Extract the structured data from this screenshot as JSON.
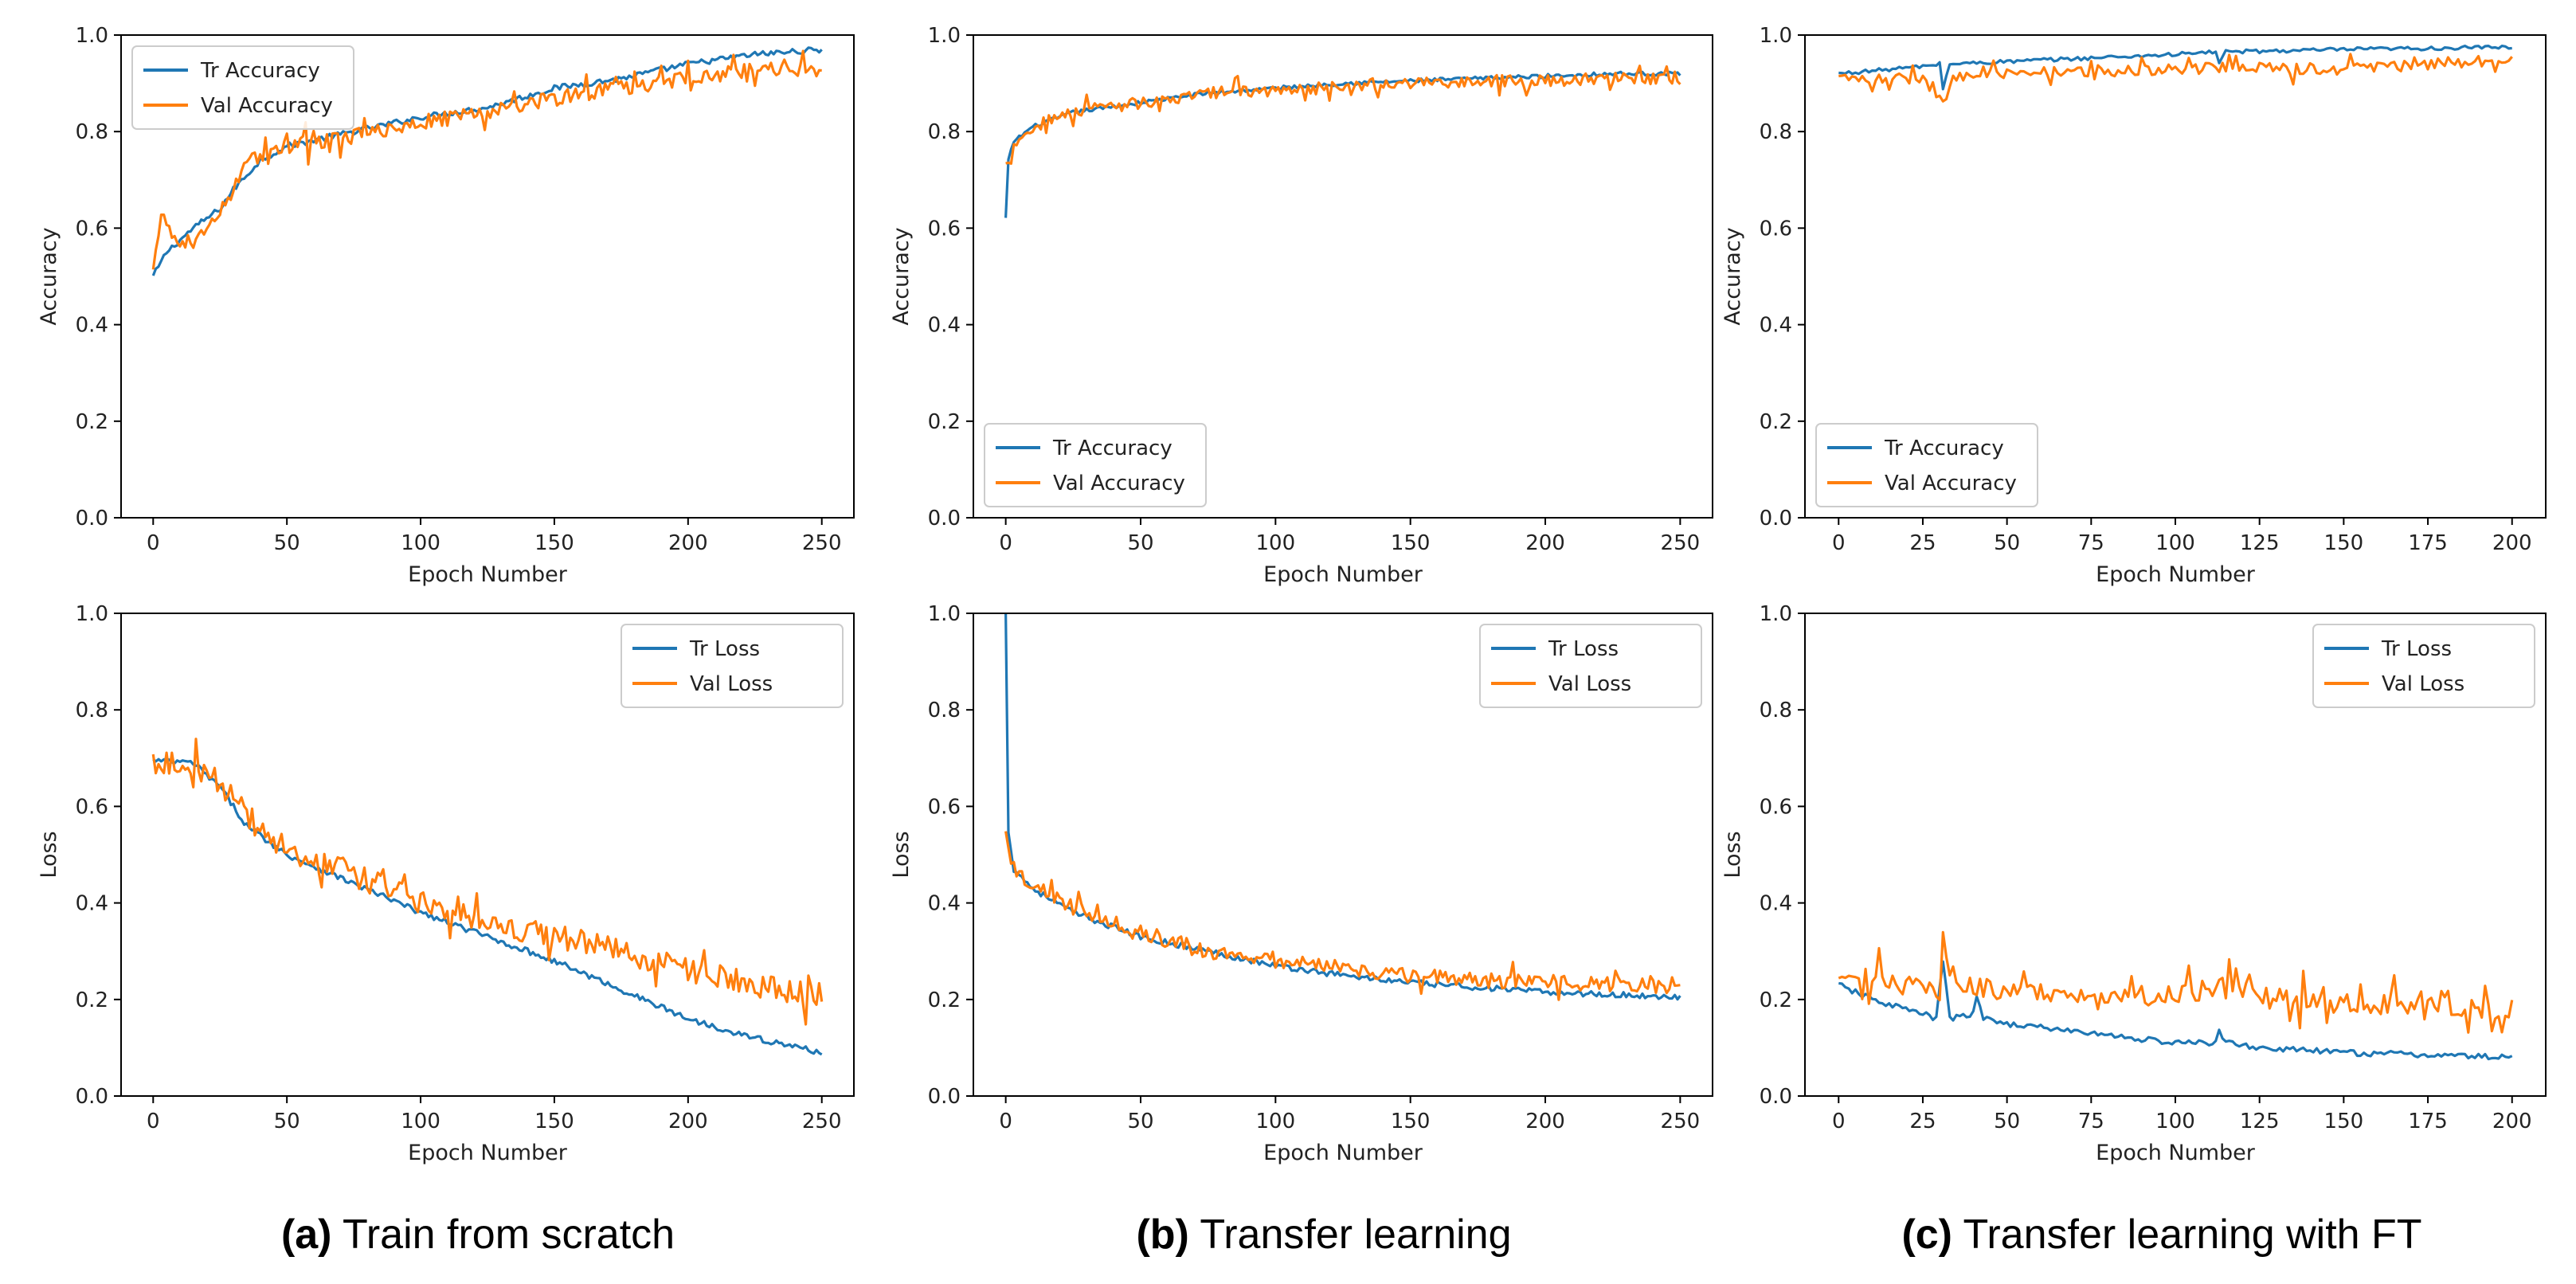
{
  "captions": [
    {
      "letter": "(a)",
      "text": "Train from scratch"
    },
    {
      "letter": "(b)",
      "text": "Transfer learning"
    },
    {
      "letter": "(c)",
      "text": "Transfer learning with FT"
    }
  ],
  "colors": {
    "train": "#1f77b4",
    "val": "#ff7f0e"
  },
  "chart_data": [
    {
      "type": "line",
      "panel": "a-accuracy",
      "xlabel": "Epoch Number",
      "ylabel": "Accuracy",
      "xlim": [
        -12,
        262
      ],
      "ylim": [
        0.0,
        1.0
      ],
      "xticks": [
        0,
        50,
        100,
        150,
        200,
        250
      ],
      "yticks": [
        0.0,
        0.2,
        0.4,
        0.6,
        0.8,
        1.0
      ],
      "legend": "top-left",
      "epochs": 250,
      "series": [
        {
          "name": "Tr Accuracy",
          "keyframes": [
            [
              0,
              0.5
            ],
            [
              5,
              0.55
            ],
            [
              15,
              0.6
            ],
            [
              25,
              0.64
            ],
            [
              30,
              0.68
            ],
            [
              40,
              0.74
            ],
            [
              50,
              0.77
            ],
            [
              75,
              0.8
            ],
            [
              100,
              0.83
            ],
            [
              125,
              0.85
            ],
            [
              150,
              0.89
            ],
            [
              175,
              0.91
            ],
            [
              200,
              0.94
            ],
            [
              225,
              0.96
            ],
            [
              250,
              0.97
            ]
          ],
          "noise": 0.006
        },
        {
          "name": "Val Accuracy",
          "keyframes": [
            [
              0,
              0.51
            ],
            [
              3,
              0.62
            ],
            [
              8,
              0.58
            ],
            [
              15,
              0.57
            ],
            [
              25,
              0.63
            ],
            [
              35,
              0.74
            ],
            [
              50,
              0.77
            ],
            [
              75,
              0.79
            ],
            [
              100,
              0.82
            ],
            [
              125,
              0.84
            ],
            [
              150,
              0.87
            ],
            [
              175,
              0.89
            ],
            [
              200,
              0.91
            ],
            [
              225,
              0.93
            ],
            [
              250,
              0.93
            ]
          ],
          "noise": 0.016
        }
      ]
    },
    {
      "type": "line",
      "panel": "b-accuracy",
      "xlabel": "Epoch Number",
      "ylabel": "Accuracy",
      "xlim": [
        -12,
        262
      ],
      "ylim": [
        0.0,
        1.0
      ],
      "xticks": [
        0,
        50,
        100,
        150,
        200,
        250
      ],
      "yticks": [
        0.0,
        0.2,
        0.4,
        0.6,
        0.8,
        1.0
      ],
      "legend": "bottom-left",
      "epochs": 250,
      "series": [
        {
          "name": "Tr Accuracy",
          "keyframes": [
            [
              0,
              0.62
            ],
            [
              1,
              0.74
            ],
            [
              3,
              0.78
            ],
            [
              10,
              0.81
            ],
            [
              25,
              0.84
            ],
            [
              50,
              0.86
            ],
            [
              75,
              0.88
            ],
            [
              100,
              0.89
            ],
            [
              125,
              0.9
            ],
            [
              150,
              0.905
            ],
            [
              175,
              0.91
            ],
            [
              200,
              0.915
            ],
            [
              225,
              0.92
            ],
            [
              250,
              0.92
            ]
          ],
          "noise": 0.004
        },
        {
          "name": "Val Accuracy",
          "keyframes": [
            [
              0,
              0.73
            ],
            [
              3,
              0.77
            ],
            [
              10,
              0.81
            ],
            [
              25,
              0.84
            ],
            [
              50,
              0.86
            ],
            [
              75,
              0.88
            ],
            [
              100,
              0.885
            ],
            [
              125,
              0.895
            ],
            [
              150,
              0.9
            ],
            [
              175,
              0.905
            ],
            [
              200,
              0.905
            ],
            [
              225,
              0.91
            ],
            [
              250,
              0.91
            ]
          ],
          "noise": 0.012
        }
      ]
    },
    {
      "type": "line",
      "panel": "c-accuracy",
      "xlabel": "Epoch Number",
      "ylabel": "Accuracy",
      "xlim": [
        -10,
        210
      ],
      "ylim": [
        0.0,
        1.0
      ],
      "xticks": [
        0,
        25,
        50,
        75,
        100,
        125,
        150,
        175,
        200
      ],
      "yticks": [
        0.0,
        0.2,
        0.4,
        0.6,
        0.8,
        1.0
      ],
      "legend": "bottom-left",
      "epochs": 200,
      "series": [
        {
          "name": "Tr Accuracy",
          "keyframes": [
            [
              0,
              0.92
            ],
            [
              25,
              0.935
            ],
            [
              30,
              0.94
            ],
            [
              31,
              0.89
            ],
            [
              33,
              0.94
            ],
            [
              50,
              0.945
            ],
            [
              100,
              0.96
            ],
            [
              112,
              0.965
            ],
            [
              113,
              0.945
            ],
            [
              115,
              0.965
            ],
            [
              150,
              0.97
            ],
            [
              200,
              0.975
            ]
          ],
          "noise": 0.004
        },
        {
          "name": "Val Accuracy",
          "keyframes": [
            [
              0,
              0.91
            ],
            [
              25,
              0.91
            ],
            [
              31,
              0.86
            ],
            [
              34,
              0.91
            ],
            [
              50,
              0.92
            ],
            [
              100,
              0.93
            ],
            [
              150,
              0.93
            ],
            [
              200,
              0.95
            ]
          ],
          "noise": 0.012
        }
      ]
    },
    {
      "type": "line",
      "panel": "a-loss",
      "xlabel": "Epoch Number",
      "ylabel": "Loss",
      "xlim": [
        -12,
        262
      ],
      "ylim": [
        0.0,
        1.0
      ],
      "xticks": [
        0,
        50,
        100,
        150,
        200,
        250
      ],
      "yticks": [
        0.0,
        0.2,
        0.4,
        0.6,
        0.8,
        1.0
      ],
      "legend": "top-right",
      "epochs": 250,
      "series": [
        {
          "name": "Tr Loss",
          "keyframes": [
            [
              0,
              0.695
            ],
            [
              15,
              0.69
            ],
            [
              25,
              0.64
            ],
            [
              35,
              0.56
            ],
            [
              50,
              0.5
            ],
            [
              75,
              0.44
            ],
            [
              100,
              0.38
            ],
            [
              125,
              0.33
            ],
            [
              150,
              0.28
            ],
            [
              175,
              0.22
            ],
            [
              200,
              0.16
            ],
            [
              225,
              0.12
            ],
            [
              250,
              0.09
            ]
          ],
          "noise": 0.006
        },
        {
          "name": "Val Loss",
          "keyframes": [
            [
              0,
              0.695
            ],
            [
              15,
              0.69
            ],
            [
              25,
              0.65
            ],
            [
              35,
              0.58
            ],
            [
              50,
              0.51
            ],
            [
              75,
              0.46
            ],
            [
              100,
              0.4
            ],
            [
              125,
              0.36
            ],
            [
              150,
              0.33
            ],
            [
              175,
              0.3
            ],
            [
              200,
              0.26
            ],
            [
              225,
              0.23
            ],
            [
              250,
              0.21
            ]
          ],
          "noise": 0.026
        }
      ]
    },
    {
      "type": "line",
      "panel": "b-loss",
      "xlabel": "Epoch Number",
      "ylabel": "Loss",
      "xlim": [
        -12,
        262
      ],
      "ylim": [
        0.0,
        1.0
      ],
      "xticks": [
        0,
        50,
        100,
        150,
        200,
        250
      ],
      "yticks": [
        0.0,
        0.2,
        0.4,
        0.6,
        0.8,
        1.0
      ],
      "legend": "top-right",
      "epochs": 250,
      "series": [
        {
          "name": "Tr Loss",
          "keyframes": [
            [
              0,
              1.0
            ],
            [
              1,
              0.55
            ],
            [
              3,
              0.47
            ],
            [
              10,
              0.43
            ],
            [
              25,
              0.38
            ],
            [
              50,
              0.33
            ],
            [
              75,
              0.3
            ],
            [
              100,
              0.27
            ],
            [
              125,
              0.25
            ],
            [
              150,
              0.235
            ],
            [
              175,
              0.225
            ],
            [
              200,
              0.215
            ],
            [
              225,
              0.21
            ],
            [
              250,
              0.205
            ]
          ],
          "noise": 0.006
        },
        {
          "name": "Val Loss",
          "keyframes": [
            [
              0,
              0.54
            ],
            [
              3,
              0.47
            ],
            [
              10,
              0.44
            ],
            [
              25,
              0.39
            ],
            [
              50,
              0.34
            ],
            [
              75,
              0.3
            ],
            [
              100,
              0.28
            ],
            [
              125,
              0.265
            ],
            [
              150,
              0.25
            ],
            [
              175,
              0.24
            ],
            [
              200,
              0.235
            ],
            [
              225,
              0.235
            ],
            [
              250,
              0.22
            ]
          ],
          "noise": 0.015
        }
      ]
    },
    {
      "type": "line",
      "panel": "c-loss",
      "xlabel": "Epoch Number",
      "ylabel": "Loss",
      "xlim": [
        -10,
        210
      ],
      "ylim": [
        0.0,
        1.0
      ],
      "xticks": [
        0,
        25,
        50,
        75,
        100,
        125,
        150,
        175,
        200
      ],
      "yticks": [
        0.0,
        0.2,
        0.4,
        0.6,
        0.8,
        1.0
      ],
      "legend": "top-right",
      "epochs": 200,
      "series": [
        {
          "name": "Tr Loss",
          "keyframes": [
            [
              0,
              0.23
            ],
            [
              10,
              0.2
            ],
            [
              25,
              0.17
            ],
            [
              29,
              0.16
            ],
            [
              31,
              0.28
            ],
            [
              33,
              0.16
            ],
            [
              40,
              0.17
            ],
            [
              41,
              0.21
            ],
            [
              43,
              0.16
            ],
            [
              50,
              0.15
            ],
            [
              75,
              0.13
            ],
            [
              100,
              0.11
            ],
            [
              112,
              0.11
            ],
            [
              113,
              0.14
            ],
            [
              115,
              0.11
            ],
            [
              125,
              0.1
            ],
            [
              150,
              0.09
            ],
            [
              175,
              0.085
            ],
            [
              200,
              0.08
            ]
          ],
          "noise": 0.006
        },
        {
          "name": "Val Loss",
          "keyframes": [
            [
              0,
              0.23
            ],
            [
              10,
              0.25
            ],
            [
              25,
              0.22
            ],
            [
              30,
              0.22
            ],
            [
              31,
              0.34
            ],
            [
              33,
              0.23
            ],
            [
              50,
              0.22
            ],
            [
              75,
              0.2
            ],
            [
              100,
              0.21
            ],
            [
              115,
              0.23
            ],
            [
              125,
              0.21
            ],
            [
              150,
              0.19
            ],
            [
              175,
              0.19
            ],
            [
              200,
              0.18
            ]
          ],
          "noise": 0.022
        }
      ]
    }
  ]
}
